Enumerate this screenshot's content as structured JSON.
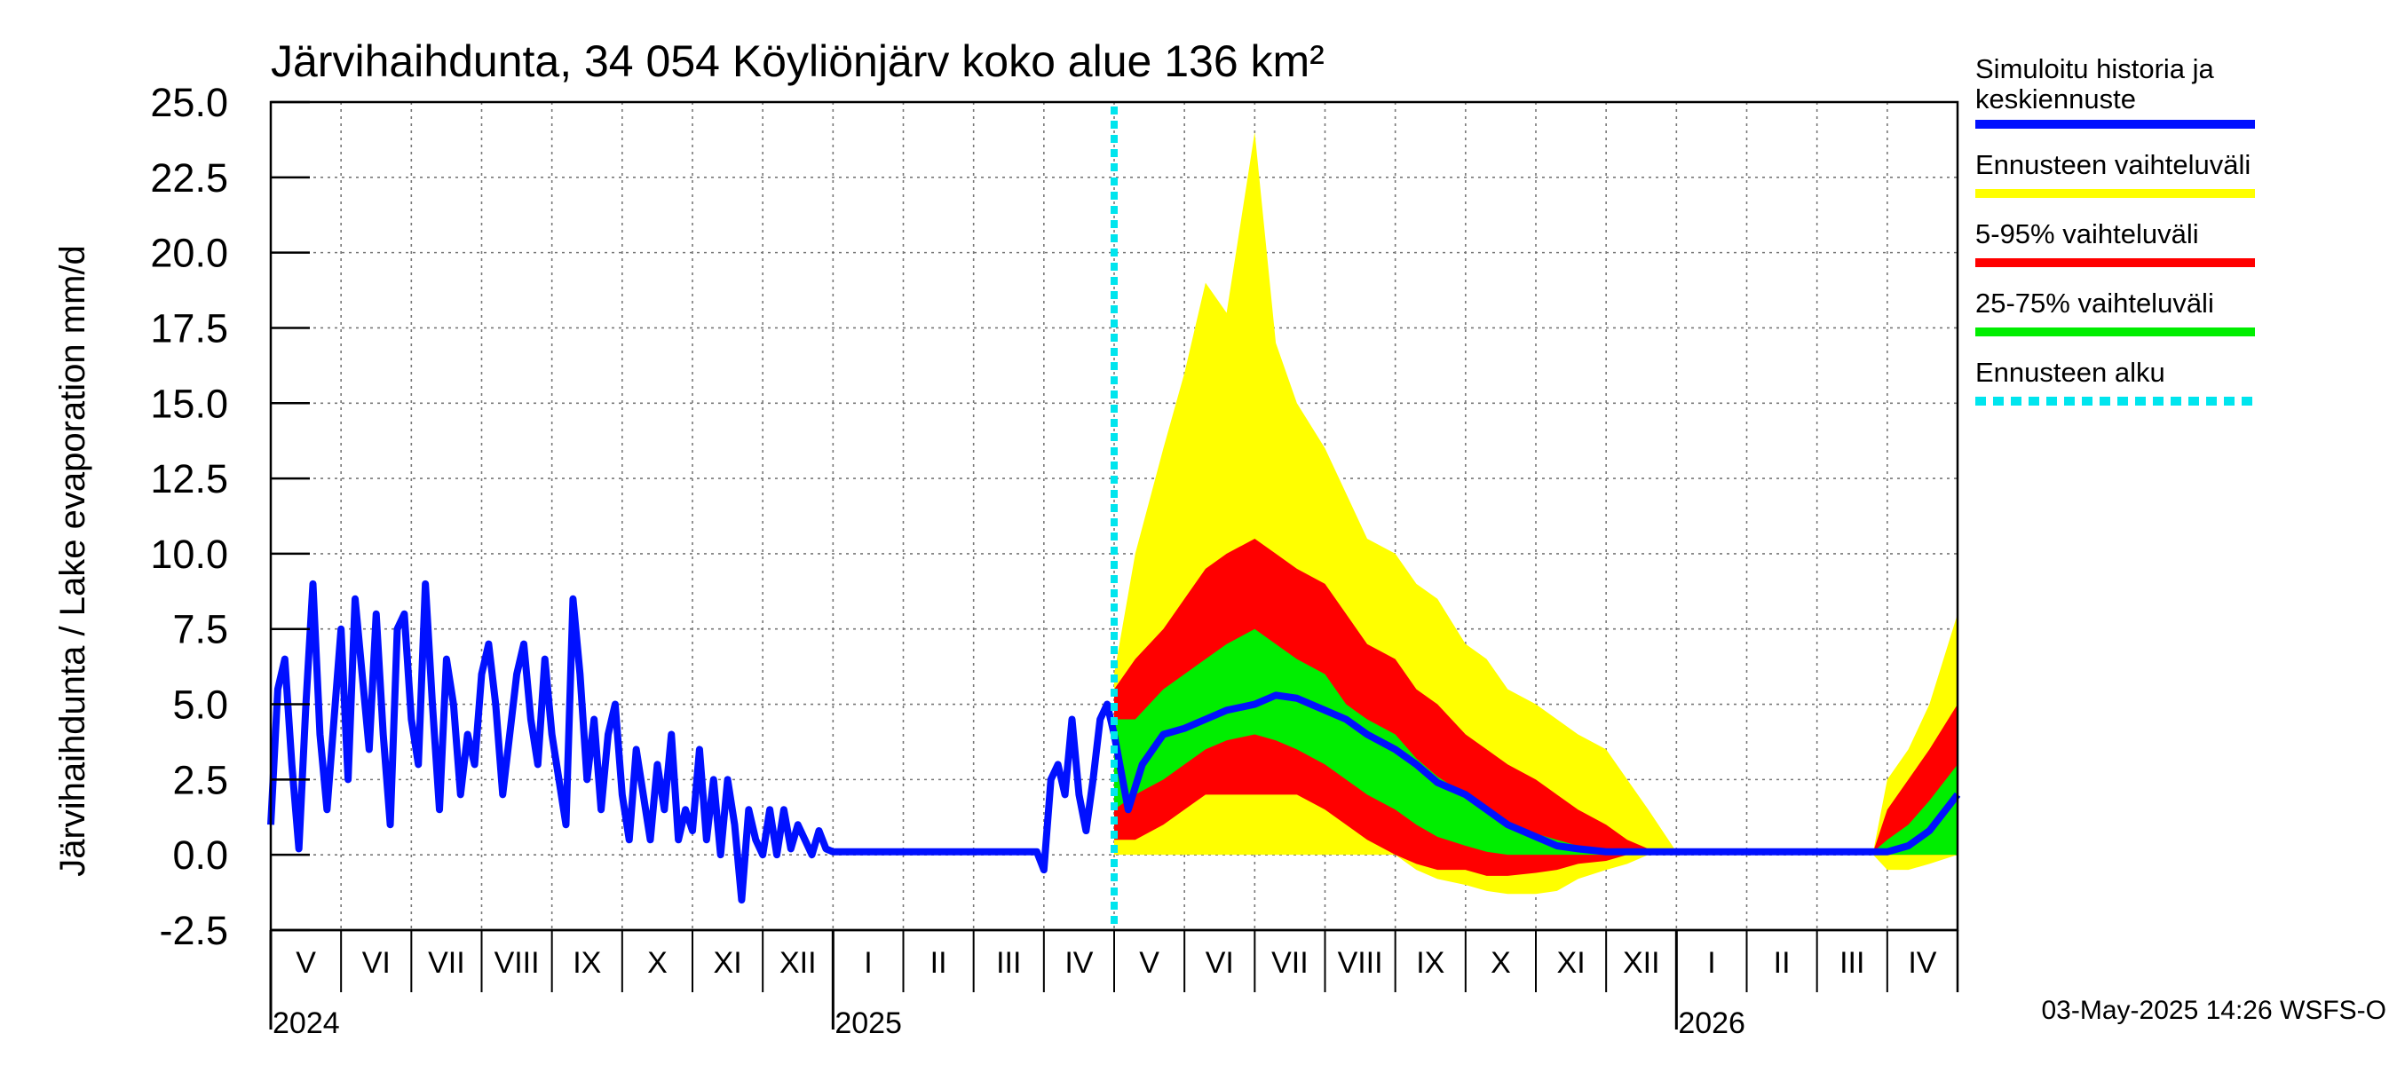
{
  "chart_data": {
    "type": "area",
    "title": "Järvihaihdunta, 34 054 Köyliönjärv koko alue 136 km²",
    "ylabel": "Järvihaihdunta / Lake evaporation   mm/d",
    "ylim": [
      -2.5,
      25.0
    ],
    "yticks": [
      "25.0",
      "22.5",
      "20.0",
      "17.5",
      "15.0",
      "12.5",
      "10.0",
      "7.5",
      "5.0",
      "2.5",
      "0.0",
      "-2.5"
    ],
    "grid": true,
    "months": [
      "V",
      "VI",
      "VII",
      "VIII",
      "IX",
      "X",
      "XI",
      "XII",
      "I",
      "II",
      "III",
      "IV",
      "V",
      "VI",
      "VII",
      "VIII",
      "IX",
      "X",
      "XI",
      "XII",
      "I",
      "II",
      "III",
      "IV"
    ],
    "years": [
      "2024",
      "2025",
      "2026"
    ],
    "forecast_start_month": 12,
    "x_unit": "months since 2024-05-01",
    "history": [
      [
        0.0,
        1.0
      ],
      [
        0.1,
        5.5
      ],
      [
        0.2,
        6.5
      ],
      [
        0.3,
        3.0
      ],
      [
        0.4,
        0.2
      ],
      [
        0.5,
        5.0
      ],
      [
        0.6,
        9.0
      ],
      [
        0.7,
        4.0
      ],
      [
        0.8,
        1.5
      ],
      [
        0.9,
        4.5
      ],
      [
        1.0,
        7.5
      ],
      [
        1.1,
        2.5
      ],
      [
        1.2,
        8.5
      ],
      [
        1.3,
        6.0
      ],
      [
        1.4,
        3.5
      ],
      [
        1.5,
        8.0
      ],
      [
        1.6,
        4.0
      ],
      [
        1.7,
        1.0
      ],
      [
        1.8,
        7.5
      ],
      [
        1.9,
        8.0
      ],
      [
        2.0,
        4.5
      ],
      [
        2.1,
        3.0
      ],
      [
        2.2,
        9.0
      ],
      [
        2.3,
        5.0
      ],
      [
        2.4,
        1.5
      ],
      [
        2.5,
        6.5
      ],
      [
        2.6,
        5.0
      ],
      [
        2.7,
        2.0
      ],
      [
        2.8,
        4.0
      ],
      [
        2.9,
        3.0
      ],
      [
        3.0,
        6.0
      ],
      [
        3.1,
        7.0
      ],
      [
        3.2,
        5.0
      ],
      [
        3.3,
        2.0
      ],
      [
        3.4,
        4.0
      ],
      [
        3.5,
        6.0
      ],
      [
        3.6,
        7.0
      ],
      [
        3.7,
        4.5
      ],
      [
        3.8,
        3.0
      ],
      [
        3.9,
        6.5
      ],
      [
        4.0,
        4.0
      ],
      [
        4.1,
        2.5
      ],
      [
        4.2,
        1.0
      ],
      [
        4.3,
        8.5
      ],
      [
        4.4,
        6.0
      ],
      [
        4.5,
        2.5
      ],
      [
        4.6,
        4.5
      ],
      [
        4.7,
        1.5
      ],
      [
        4.8,
        4.0
      ],
      [
        4.9,
        5.0
      ],
      [
        5.0,
        2.0
      ],
      [
        5.1,
        0.5
      ],
      [
        5.2,
        3.5
      ],
      [
        5.3,
        2.0
      ],
      [
        5.4,
        0.5
      ],
      [
        5.5,
        3.0
      ],
      [
        5.6,
        1.5
      ],
      [
        5.7,
        4.0
      ],
      [
        5.8,
        0.5
      ],
      [
        5.9,
        1.5
      ],
      [
        6.0,
        0.8
      ],
      [
        6.1,
        3.5
      ],
      [
        6.2,
        0.5
      ],
      [
        6.3,
        2.5
      ],
      [
        6.4,
        0.0
      ],
      [
        6.5,
        2.5
      ],
      [
        6.6,
        1.0
      ],
      [
        6.7,
        -1.5
      ],
      [
        6.8,
        1.5
      ],
      [
        6.9,
        0.5
      ],
      [
        7.0,
        0.0
      ],
      [
        7.1,
        1.5
      ],
      [
        7.2,
        0.0
      ],
      [
        7.3,
        1.5
      ],
      [
        7.4,
        0.2
      ],
      [
        7.5,
        1.0
      ],
      [
        7.6,
        0.5
      ],
      [
        7.7,
        0.0
      ],
      [
        7.8,
        0.8
      ],
      [
        7.9,
        0.2
      ],
      [
        8.0,
        0.1
      ],
      [
        8.5,
        0.1
      ],
      [
        9.0,
        0.1
      ],
      [
        9.5,
        0.1
      ],
      [
        10.0,
        0.1
      ],
      [
        10.5,
        0.1
      ],
      [
        10.9,
        0.1
      ],
      [
        11.0,
        -0.5
      ],
      [
        11.1,
        2.5
      ],
      [
        11.2,
        3.0
      ],
      [
        11.3,
        2.0
      ],
      [
        11.4,
        4.5
      ],
      [
        11.5,
        2.0
      ],
      [
        11.6,
        0.8
      ],
      [
        11.7,
        2.5
      ],
      [
        11.8,
        4.5
      ],
      [
        11.9,
        5.0
      ],
      [
        12.0,
        4.0
      ]
    ],
    "series": [
      {
        "name": "Simuloitu historia ja keskiennuste",
        "color": "#0010ff",
        "values": [
          [
            12.0,
            4.0
          ],
          [
            12.2,
            1.5
          ],
          [
            12.4,
            3.0
          ],
          [
            12.7,
            4.0
          ],
          [
            13.0,
            4.2
          ],
          [
            13.3,
            4.5
          ],
          [
            13.6,
            4.8
          ],
          [
            14.0,
            5.0
          ],
          [
            14.3,
            5.3
          ],
          [
            14.6,
            5.2
          ],
          [
            15.0,
            4.8
          ],
          [
            15.3,
            4.5
          ],
          [
            15.6,
            4.0
          ],
          [
            16.0,
            3.5
          ],
          [
            16.3,
            3.0
          ],
          [
            16.6,
            2.4
          ],
          [
            17.0,
            2.0
          ],
          [
            17.3,
            1.5
          ],
          [
            17.6,
            1.0
          ],
          [
            18.0,
            0.6
          ],
          [
            18.3,
            0.3
          ],
          [
            18.6,
            0.2
          ],
          [
            19.0,
            0.1
          ],
          [
            19.5,
            0.1
          ],
          [
            20.0,
            0.1
          ],
          [
            21.0,
            0.1
          ],
          [
            22.0,
            0.1
          ],
          [
            23.0,
            0.1
          ],
          [
            23.3,
            0.3
          ],
          [
            23.6,
            0.8
          ],
          [
            24.0,
            2.0
          ]
        ]
      },
      {
        "name": "Ennusteen vaihteluväli",
        "color": "#ffff00",
        "band": [
          [
            12.0,
            0.0,
            6.0
          ],
          [
            12.3,
            0.0,
            10.0
          ],
          [
            12.7,
            0.0,
            13.5
          ],
          [
            13.0,
            0.0,
            16.0
          ],
          [
            13.3,
            0.0,
            19.0
          ],
          [
            13.6,
            0.0,
            18.0
          ],
          [
            14.0,
            0.0,
            24.0
          ],
          [
            14.3,
            0.0,
            17.0
          ],
          [
            14.6,
            0.0,
            15.0
          ],
          [
            15.0,
            0.0,
            13.5
          ],
          [
            15.3,
            0.0,
            12.0
          ],
          [
            15.6,
            0.0,
            10.5
          ],
          [
            16.0,
            0.0,
            10.0
          ],
          [
            16.3,
            -0.5,
            9.0
          ],
          [
            16.6,
            -0.8,
            8.5
          ],
          [
            17.0,
            -1.0,
            7.0
          ],
          [
            17.3,
            -1.2,
            6.5
          ],
          [
            17.6,
            -1.3,
            5.5
          ],
          [
            18.0,
            -1.3,
            5.0
          ],
          [
            18.3,
            -1.2,
            4.5
          ],
          [
            18.6,
            -0.8,
            4.0
          ],
          [
            19.0,
            -0.5,
            3.5
          ],
          [
            19.3,
            -0.3,
            2.5
          ],
          [
            19.6,
            0.0,
            1.5
          ],
          [
            20.0,
            0.0,
            0.1
          ],
          [
            22.8,
            0.0,
            0.1
          ],
          [
            23.0,
            -0.5,
            2.5
          ],
          [
            23.3,
            -0.5,
            3.5
          ],
          [
            23.6,
            -0.3,
            5.0
          ],
          [
            24.0,
            0.0,
            8.0
          ]
        ]
      },
      {
        "name": "5-95% vaihteluväli",
        "color": "#ff0000",
        "band": [
          [
            12.0,
            0.5,
            5.5
          ],
          [
            12.3,
            0.5,
            6.5
          ],
          [
            12.7,
            1.0,
            7.5
          ],
          [
            13.0,
            1.5,
            8.5
          ],
          [
            13.3,
            2.0,
            9.5
          ],
          [
            13.6,
            2.0,
            10.0
          ],
          [
            14.0,
            2.0,
            10.5
          ],
          [
            14.3,
            2.0,
            10.0
          ],
          [
            14.6,
            2.0,
            9.5
          ],
          [
            15.0,
            1.5,
            9.0
          ],
          [
            15.3,
            1.0,
            8.0
          ],
          [
            15.6,
            0.5,
            7.0
          ],
          [
            16.0,
            0.0,
            6.5
          ],
          [
            16.3,
            -0.3,
            5.5
          ],
          [
            16.6,
            -0.5,
            5.0
          ],
          [
            17.0,
            -0.5,
            4.0
          ],
          [
            17.3,
            -0.7,
            3.5
          ],
          [
            17.6,
            -0.7,
            3.0
          ],
          [
            18.0,
            -0.6,
            2.5
          ],
          [
            18.3,
            -0.5,
            2.0
          ],
          [
            18.6,
            -0.3,
            1.5
          ],
          [
            19.0,
            -0.2,
            1.0
          ],
          [
            19.3,
            0.0,
            0.5
          ],
          [
            19.6,
            0.0,
            0.2
          ],
          [
            20.0,
            0.0,
            0.1
          ],
          [
            22.8,
            0.0,
            0.1
          ],
          [
            23.0,
            0.0,
            1.5
          ],
          [
            23.3,
            0.0,
            2.5
          ],
          [
            23.6,
            0.0,
            3.5
          ],
          [
            24.0,
            0.0,
            5.0
          ]
        ]
      },
      {
        "name": "25-75% vaihteluväli",
        "color": "#00ee00",
        "band": [
          [
            12.0,
            1.5,
            4.5
          ],
          [
            12.3,
            2.0,
            4.5
          ],
          [
            12.7,
            2.5,
            5.5
          ],
          [
            13.0,
            3.0,
            6.0
          ],
          [
            13.3,
            3.5,
            6.5
          ],
          [
            13.6,
            3.8,
            7.0
          ],
          [
            14.0,
            4.0,
            7.5
          ],
          [
            14.3,
            3.8,
            7.0
          ],
          [
            14.6,
            3.5,
            6.5
          ],
          [
            15.0,
            3.0,
            6.0
          ],
          [
            15.3,
            2.5,
            5.0
          ],
          [
            15.6,
            2.0,
            4.5
          ],
          [
            16.0,
            1.5,
            4.0
          ],
          [
            16.3,
            1.0,
            3.2
          ],
          [
            16.6,
            0.6,
            2.6
          ],
          [
            17.0,
            0.3,
            2.0
          ],
          [
            17.3,
            0.1,
            1.5
          ],
          [
            17.6,
            0.0,
            1.0
          ],
          [
            18.0,
            0.0,
            0.7
          ],
          [
            18.3,
            0.0,
            0.5
          ],
          [
            18.6,
            0.0,
            0.3
          ],
          [
            19.0,
            0.0,
            0.2
          ],
          [
            19.5,
            0.0,
            0.1
          ],
          [
            22.8,
            0.0,
            0.1
          ],
          [
            23.0,
            0.0,
            0.5
          ],
          [
            23.3,
            0.0,
            1.0
          ],
          [
            23.6,
            0.0,
            1.8
          ],
          [
            24.0,
            0.0,
            3.0
          ]
        ]
      },
      {
        "name": "Ennusteen alku",
        "color": "#00e5ee"
      }
    ],
    "footer": "03-May-2025 14:26 WSFS-O"
  }
}
